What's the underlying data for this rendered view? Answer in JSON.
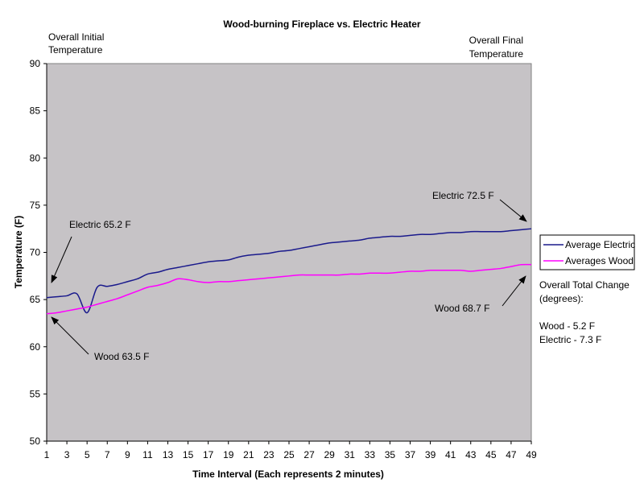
{
  "chart_data": {
    "type": "line",
    "title": "Wood-burning Fireplace vs. Electric Heater",
    "xlabel": "Time Interval (Each represents 2 minutes)",
    "ylabel": "Temperature (F)",
    "xlim": [
      1,
      49
    ],
    "ylim": [
      50,
      90
    ],
    "yticks": [
      50,
      55,
      60,
      65,
      70,
      75,
      80,
      85,
      90
    ],
    "xticks": [
      1,
      3,
      5,
      7,
      9,
      11,
      13,
      15,
      17,
      19,
      21,
      23,
      25,
      27,
      29,
      31,
      33,
      35,
      37,
      39,
      41,
      43,
      45,
      47,
      49
    ],
    "grid": false,
    "legend_position": "right",
    "colors": {
      "plot_bg": "#c6c3c6",
      "electric": "#1a1a8c",
      "wood": "#ff00ff"
    },
    "series": [
      {
        "name": "Average Electric",
        "color": "#1a1a8c",
        "values": [
          65.2,
          65.3,
          65.4,
          65.6,
          63.6,
          66.3,
          66.4,
          66.6,
          66.9,
          67.2,
          67.7,
          67.9,
          68.2,
          68.4,
          68.6,
          68.8,
          69.0,
          69.1,
          69.2,
          69.5,
          69.7,
          69.8,
          69.9,
          70.1,
          70.2,
          70.4,
          70.6,
          70.8,
          71.0,
          71.1,
          71.2,
          71.3,
          71.5,
          71.6,
          71.7,
          71.7,
          71.8,
          71.9,
          71.9,
          72.0,
          72.1,
          72.1,
          72.2,
          72.2,
          72.2,
          72.2,
          72.3,
          72.4,
          72.5
        ]
      },
      {
        "name": "Averages Wood",
        "color": "#ff00ff",
        "values": [
          63.5,
          63.6,
          63.8,
          64.0,
          64.2,
          64.5,
          64.8,
          65.1,
          65.5,
          65.9,
          66.3,
          66.5,
          66.8,
          67.2,
          67.1,
          66.9,
          66.8,
          66.9,
          66.9,
          67.0,
          67.1,
          67.2,
          67.3,
          67.4,
          67.5,
          67.6,
          67.6,
          67.6,
          67.6,
          67.6,
          67.7,
          67.7,
          67.8,
          67.8,
          67.8,
          67.9,
          68.0,
          68.0,
          68.1,
          68.1,
          68.1,
          68.1,
          68.0,
          68.1,
          68.2,
          68.3,
          68.5,
          68.7,
          68.7
        ]
      }
    ],
    "annotations": {
      "initial_header": [
        "Overall Initial",
        "Temperature"
      ],
      "final_header": [
        "Overall Final",
        "Temperature"
      ],
      "electric_start": "Electric  65.2 F",
      "wood_start": "Wood 63.5 F",
      "electric_end": "Electric  72.5 F",
      "wood_end": "Wood  68.7 F",
      "total_change_title": [
        "Overall Total Change",
        "(degrees):"
      ],
      "wood_change": "Wood - 5.2 F",
      "electric_change": "Electric - 7.3 F"
    }
  }
}
